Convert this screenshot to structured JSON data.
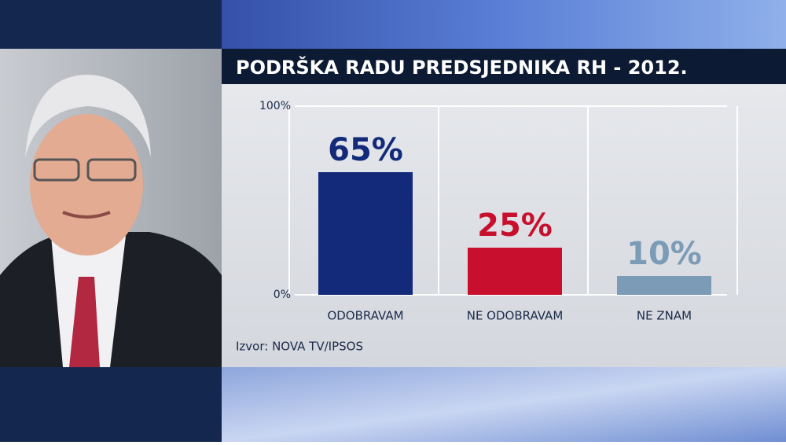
{
  "chart_data": {
    "type": "bar",
    "title": "PODRŠKA RADU PREDSJEDNIKA RH - 2012.",
    "categories": [
      "ODOBRAVAM",
      "NE ODOBRAVAM",
      "NE ZNAM"
    ],
    "values": [
      65,
      25,
      10
    ],
    "value_labels": [
      "65%",
      "25%",
      "10%"
    ],
    "colors": [
      "#13297a",
      "#c8102e",
      "#7b9bb6"
    ],
    "ylim": [
      0,
      100
    ],
    "yticks": [
      {
        "value": 0,
        "label": "0%"
      },
      {
        "value": 100,
        "label": "100%"
      }
    ],
    "grid": true,
    "source": "Izvor: NOVA TV/IPSOS"
  }
}
